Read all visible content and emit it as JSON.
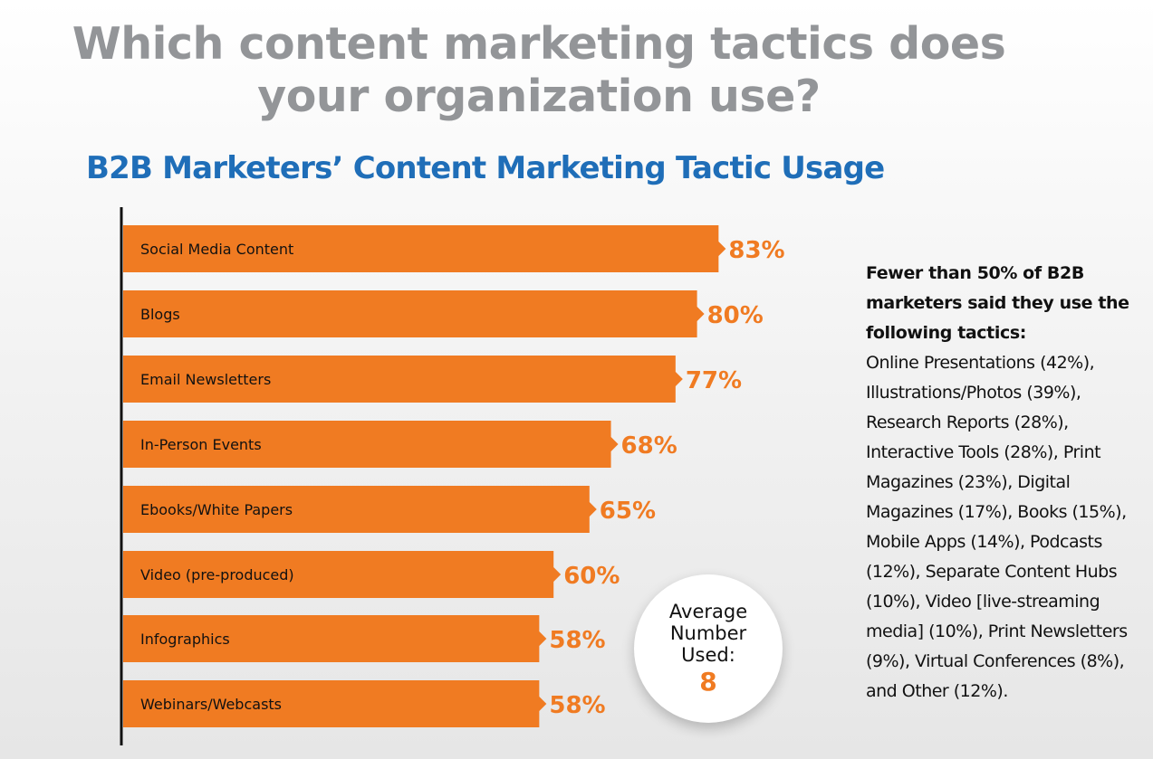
{
  "main_title": {
    "line1": "Which content marketing tactics does",
    "line2": "your organization use?"
  },
  "colors": {
    "bar": "#f07b22",
    "title_gray": "#939598",
    "chart_title_blue": "#1f6eb8",
    "axis": "#111111"
  },
  "chart_data": {
    "type": "bar",
    "orientation": "horizontal",
    "title": "B2B Marketers’ Content Marketing Tactic Usage",
    "categories": [
      "Social Media Content",
      "Blogs",
      "Email Newsletters",
      "In-Person Events",
      "Ebooks/White Papers",
      "Video (pre-produced)",
      "Infographics",
      "Webinars/Webcasts"
    ],
    "values": [
      83,
      80,
      77,
      68,
      65,
      60,
      58,
      58
    ],
    "value_labels": [
      "83%",
      "80%",
      "77%",
      "68%",
      "65%",
      "60%",
      "58%",
      "58%"
    ],
    "xlim": [
      0,
      100
    ],
    "grid": false,
    "legend": "none"
  },
  "average": {
    "line1": "Average",
    "line2": "Number",
    "line3": "Used:",
    "value": "8"
  },
  "side_note": {
    "heading": "Fewer than 50% of B2B marketers said they use the following tactics:",
    "body": "Online Presentations (42%), Illustrations/Photos (39%), Research Reports (28%), Interactive Tools (28%), Print Magazines (23%), Digital Magazines (17%), Books (15%), Mobile Apps (14%), Podcasts (12%), Separate Content Hubs (10%), Video [live-streaming media] (10%), Print Newsletters (9%), Virtual Conferences (8%), and Other (12%)."
  }
}
